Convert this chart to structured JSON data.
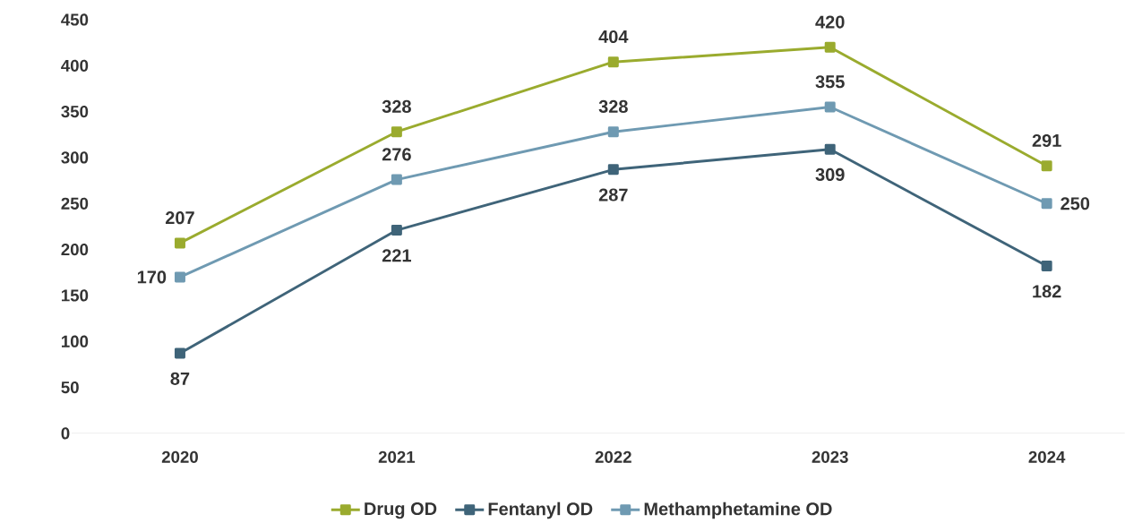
{
  "chart_data": {
    "type": "line",
    "categories": [
      "2020",
      "2021",
      "2022",
      "2023",
      "2024"
    ],
    "series": [
      {
        "name": "Drug OD",
        "color": "#9aab2e",
        "values": [
          207,
          328,
          404,
          420,
          291
        ],
        "value_labels": [
          "207",
          "328",
          "404",
          "420",
          "291"
        ]
      },
      {
        "name": "Fentanyl OD",
        "color": "#3f6479",
        "values": [
          87,
          221,
          287,
          309,
          182
        ],
        "value_labels": [
          "87",
          "221",
          "287",
          "309",
          "182"
        ]
      },
      {
        "name": "Methamphetamine OD",
        "color": "#6f9ab2",
        "values": [
          170,
          276,
          328,
          355,
          250
        ],
        "value_labels": [
          "170",
          "276",
          "328",
          "355",
          "250"
        ]
      }
    ],
    "ylim": [
      0,
      450
    ],
    "yticks": [
      0,
      50,
      100,
      150,
      200,
      250,
      300,
      350,
      400,
      450
    ],
    "marker": "square",
    "line_style": "solid",
    "legend": "bottom"
  }
}
